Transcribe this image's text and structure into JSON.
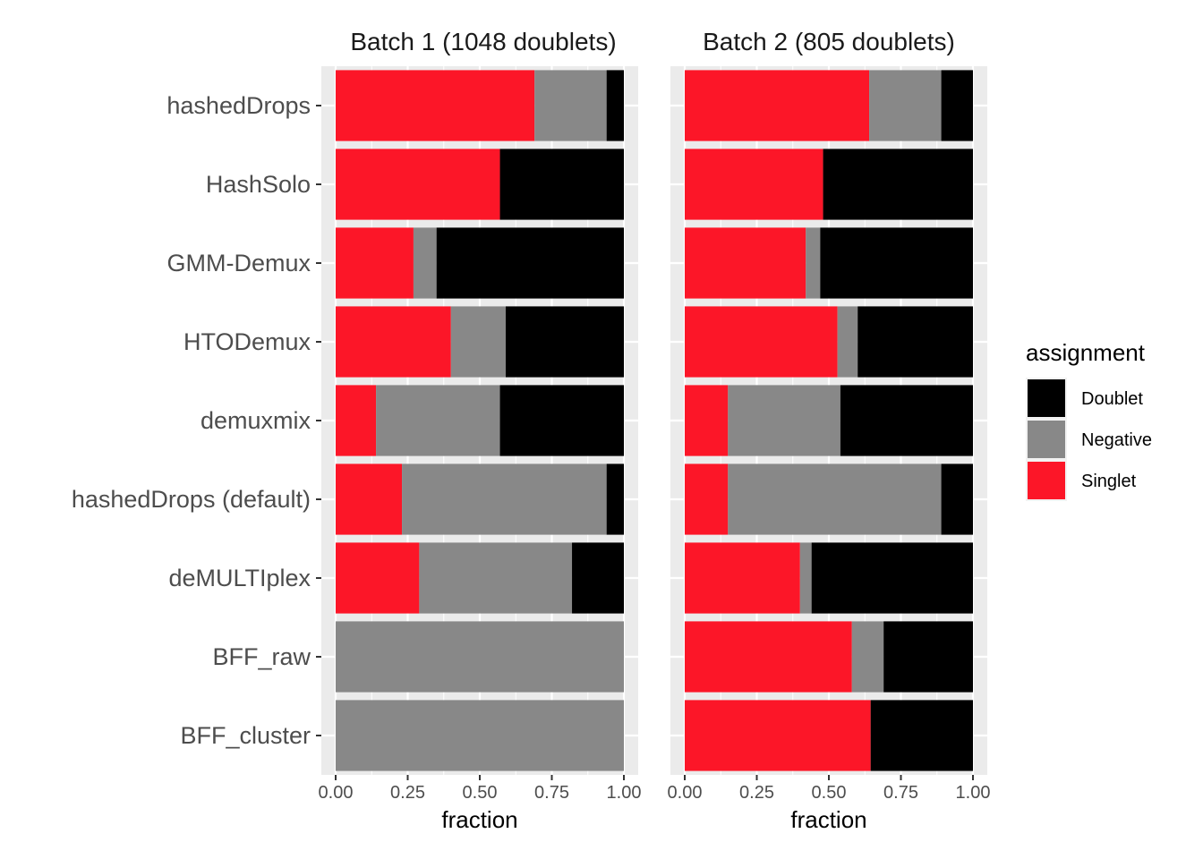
{
  "chart_data": {
    "type": "bar",
    "orientation": "horizontal",
    "stacked": true,
    "categories": [
      "hashedDrops",
      "HashSolo",
      "GMM-Demux",
      "HTODemux",
      "demuxmix",
      "hashedDrops (default)",
      "deMULTIplex",
      "BFF_raw",
      "BFF_cluster"
    ],
    "xlabel": "fraction",
    "xlim": [
      0,
      1
    ],
    "xticks": [
      "0.00",
      "0.25",
      "0.50",
      "0.75",
      "1.00"
    ],
    "grid": true,
    "legend": {
      "title": "assignment",
      "position": "right",
      "entries": [
        {
          "name": "Doublet",
          "color": "#000000"
        },
        {
          "name": "Negative",
          "color": "#888888"
        },
        {
          "name": "Singlet",
          "color": "#fc1628"
        }
      ]
    },
    "facets": [
      {
        "title": "Batch 1 (1048 doublets)",
        "series": [
          {
            "name": "Singlet",
            "values": [
              0.69,
              0.57,
              0.27,
              0.4,
              0.14,
              0.23,
              0.29,
              0.0,
              0.0
            ]
          },
          {
            "name": "Negative",
            "values": [
              0.25,
              0.0,
              0.08,
              0.19,
              0.43,
              0.71,
              0.53,
              1.0,
              1.0
            ]
          },
          {
            "name": "Doublet",
            "values": [
              0.06,
              0.43,
              0.65,
              0.41,
              0.43,
              0.06,
              0.18,
              0.0,
              0.0
            ]
          }
        ]
      },
      {
        "title": "Batch 2 (805 doublets)",
        "series": [
          {
            "name": "Singlet",
            "values": [
              0.64,
              0.48,
              0.42,
              0.53,
              0.15,
              0.15,
              0.4,
              0.58,
              0.645
            ]
          },
          {
            "name": "Negative",
            "values": [
              0.25,
              0.0,
              0.05,
              0.07,
              0.39,
              0.74,
              0.04,
              0.11,
              0.0
            ]
          },
          {
            "name": "Doublet",
            "values": [
              0.11,
              0.52,
              0.53,
              0.4,
              0.46,
              0.11,
              0.56,
              0.31,
              0.355
            ]
          }
        ]
      }
    ]
  }
}
